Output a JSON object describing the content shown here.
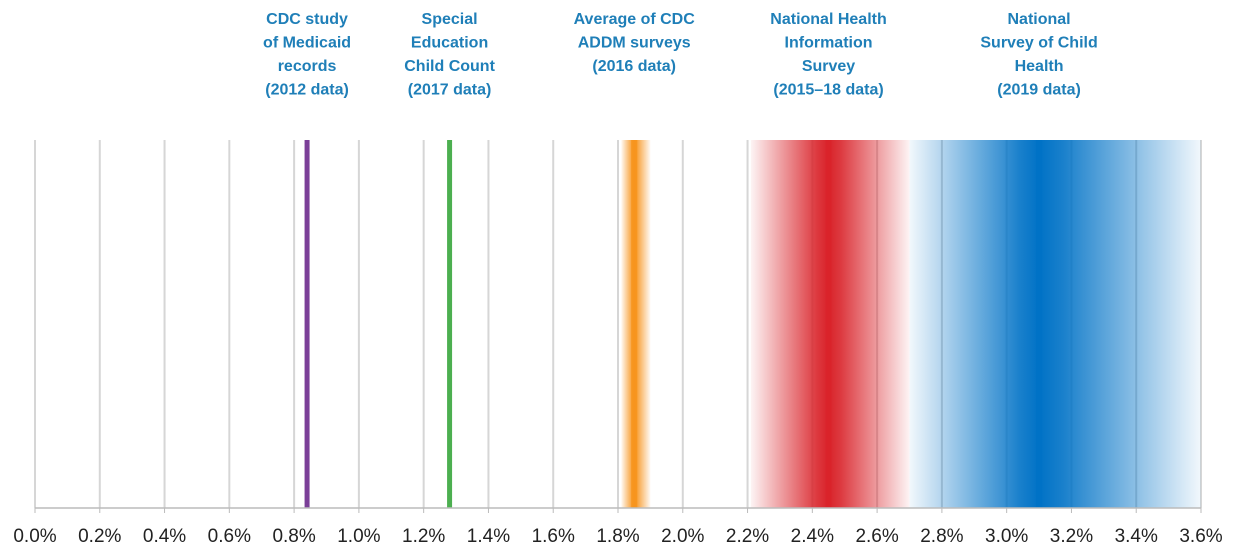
{
  "chart_data": {
    "type": "range",
    "xlim": [
      0,
      3.6
    ],
    "xticks": [
      {
        "value": 0,
        "label": "0.0%"
      },
      {
        "value": 0.2,
        "label": "0.2%"
      },
      {
        "value": 0.4,
        "label": "0.4%"
      },
      {
        "value": 0.6,
        "label": "0.6%"
      },
      {
        "value": 0.8,
        "label": "0.8%"
      },
      {
        "value": 1.0,
        "label": "1.0%"
      },
      {
        "value": 1.2,
        "label": "1.2%"
      },
      {
        "value": 1.4,
        "label": "1.4%"
      },
      {
        "value": 1.6,
        "label": "1.6%"
      },
      {
        "value": 1.8,
        "label": "1.8%"
      },
      {
        "value": 2.0,
        "label": "2.0%"
      },
      {
        "value": 2.2,
        "label": "2.2%"
      },
      {
        "value": 2.4,
        "label": "2.4%"
      },
      {
        "value": 2.6,
        "label": "2.6%"
      },
      {
        "value": 2.8,
        "label": "2.8%"
      },
      {
        "value": 3.0,
        "label": "3.0%"
      },
      {
        "value": 3.2,
        "label": "3.2%"
      },
      {
        "value": 3.4,
        "label": "3.4%"
      },
      {
        "value": 3.6,
        "label": "3.6%"
      }
    ],
    "grid": true,
    "series": [
      {
        "name": [
          "CDC study",
          "of Medicaid",
          "records",
          "(2012 data)"
        ],
        "color": "#7b3f98",
        "value": 0.84
      },
      {
        "name": [
          "Special",
          "Education",
          "Child Count",
          "(2017 data)"
        ],
        "color": "#4caf50",
        "value": 1.28
      },
      {
        "name": [
          "Average of CDC",
          "ADDM surveys",
          "(2016 data)"
        ],
        "color": "#f7941d",
        "value": 1.85,
        "low": 1.81,
        "high": 1.9
      },
      {
        "name": [
          "National Health",
          "Information",
          "Survey",
          "(2015–18 data)"
        ],
        "color": "#d9232a",
        "value": 2.45,
        "low": 2.21,
        "high": 2.7
      },
      {
        "name": [
          "National",
          "Survey of Child",
          "Health",
          "(2019 data)"
        ],
        "color": "#0072c6",
        "value": 3.1,
        "low": 2.7,
        "high": 3.6
      }
    ]
  }
}
